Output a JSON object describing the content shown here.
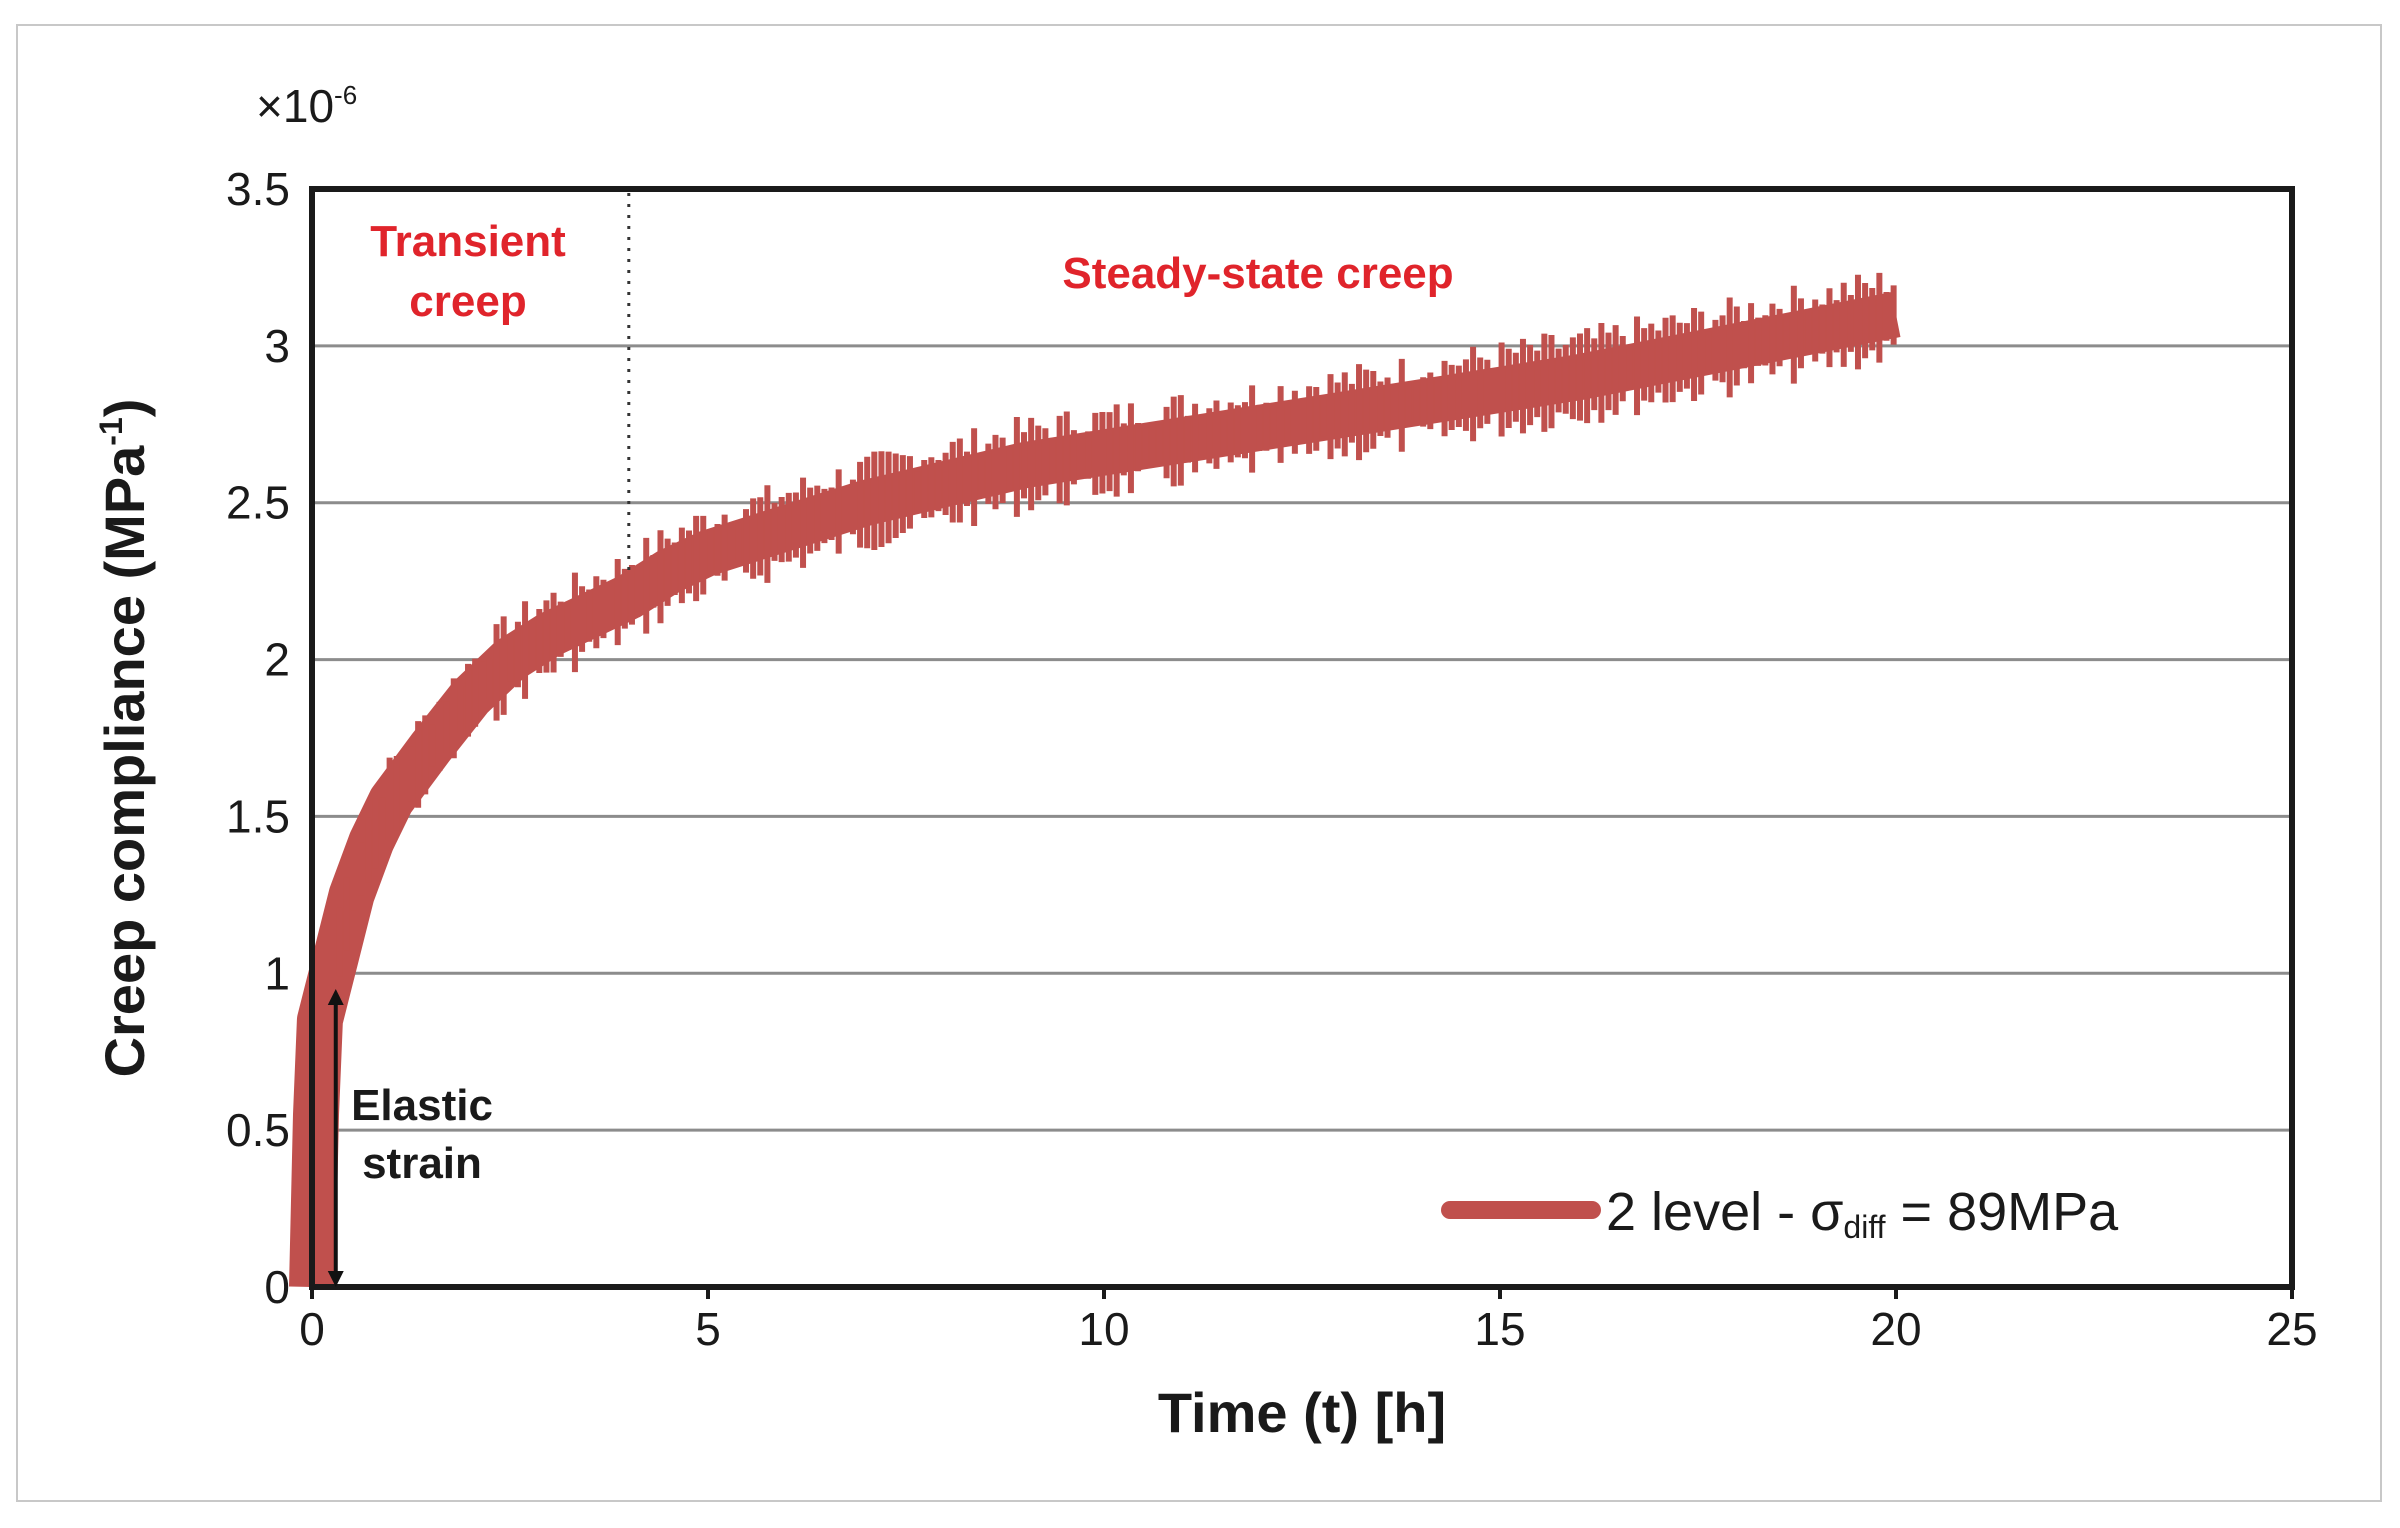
{
  "chart_data": {
    "type": "line",
    "title": "",
    "xlabel": "Time (t) [h]",
    "ylabel": "Creep compliance (MPa",
    "ylabel_sup": "-1",
    "ylabel_close": ")",
    "y_multiplier": "×10",
    "y_multiplier_exp": "-6",
    "xlim": [
      0,
      25
    ],
    "ylim": [
      0,
      3.5
    ],
    "xticks": [
      0,
      5,
      10,
      15,
      20,
      25
    ],
    "xtick_labels": [
      "0",
      "5",
      "10",
      "15",
      "20",
      "25"
    ],
    "yticks": [
      0,
      0.5,
      1,
      1.5,
      2,
      2.5,
      3,
      3.5
    ],
    "ytick_labels": [
      "0",
      "0.5",
      "1",
      "1.5",
      "2",
      "2.5",
      "3",
      "3.5"
    ],
    "grid": "horizontal",
    "series": [
      {
        "name": "2 level - σdiff = 89MPa",
        "color": "#c0504d",
        "x": [
          0,
          0.05,
          0.1,
          0.2,
          0.3,
          0.5,
          0.75,
          1,
          1.5,
          2,
          2.5,
          3,
          3.5,
          4,
          4.5,
          5,
          6,
          7,
          8,
          9,
          10,
          11,
          12,
          13,
          14,
          15,
          16,
          17,
          18,
          19,
          20
        ],
        "values": [
          0.0,
          0.55,
          0.85,
          0.95,
          1.05,
          1.25,
          1.42,
          1.55,
          1.72,
          1.88,
          2.0,
          2.08,
          2.14,
          2.2,
          2.28,
          2.34,
          2.42,
          2.5,
          2.56,
          2.62,
          2.66,
          2.7,
          2.74,
          2.78,
          2.82,
          2.86,
          2.9,
          2.95,
          3.0,
          3.05,
          3.1
        ]
      }
    ],
    "legend": {
      "position": "bottom-right",
      "prefix": "2 level - ",
      "sigma": "σ",
      "sub": "diff",
      "suffix": " = 89MPa"
    },
    "annotations": {
      "transient_line1": "Transient",
      "transient_line2": "creep",
      "steady": "Steady-state creep",
      "elastic_line1": "Elastic",
      "elastic_line2": "strain",
      "transition_x": 4,
      "elastic_arrow_x": 0.3,
      "elastic_arrow_y": [
        0,
        0.95
      ]
    },
    "colors": {
      "series": "#c0504d",
      "annotation": "#e0242b",
      "grid": "#8c8c8c",
      "axis": "#1a1a1a"
    }
  }
}
